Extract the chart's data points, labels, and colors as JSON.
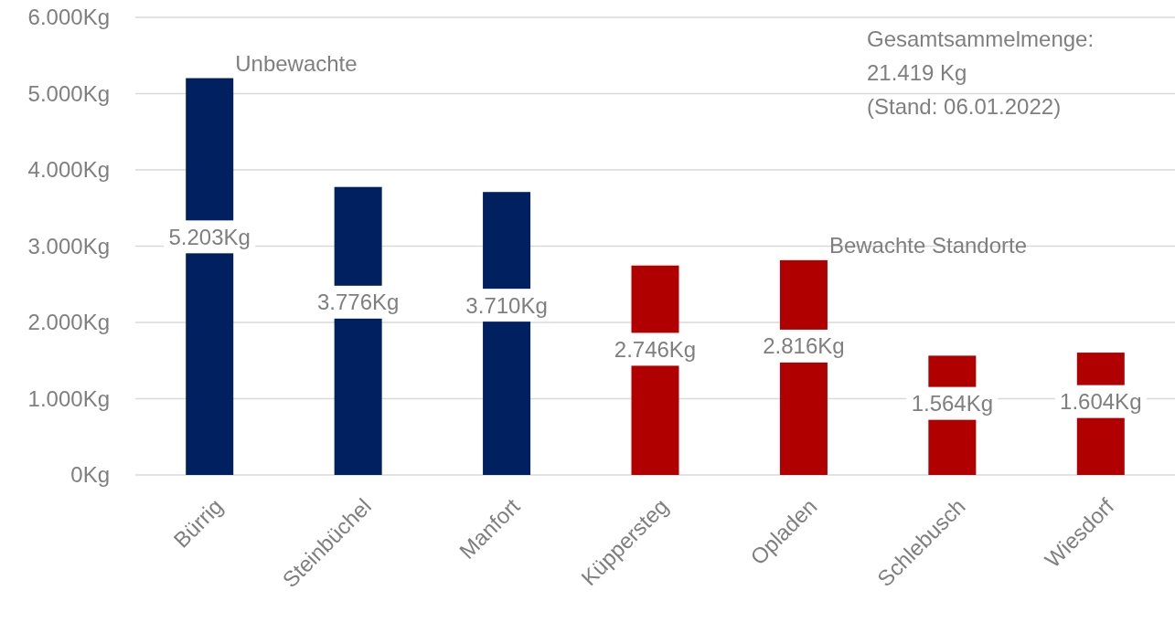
{
  "chart_data": {
    "type": "bar",
    "categories": [
      "Bürrig",
      "Steinbüchel",
      "Manfort",
      "Küppersteg",
      "Opladen",
      "Schlebusch",
      "Wiesdorf"
    ],
    "values": [
      5203,
      3776,
      3710,
      2746,
      2816,
      1564,
      1604
    ],
    "colors": [
      "#002060",
      "#002060",
      "#002060",
      "#b00000",
      "#b00000",
      "#b00000",
      "#b00000"
    ],
    "value_labels": [
      "5.203Kg",
      "3.776Kg",
      "3.710Kg",
      "2.746Kg",
      "2.816Kg",
      "1.564Kg",
      "1.604Kg"
    ],
    "ylim": [
      0,
      6000
    ],
    "yticks": [
      {
        "value": 0,
        "label": "0Kg"
      },
      {
        "value": 1000,
        "label": "1.000Kg"
      },
      {
        "value": 2000,
        "label": "2.000Kg"
      },
      {
        "value": 3000,
        "label": "3.000Kg"
      },
      {
        "value": 4000,
        "label": "4.000Kg"
      },
      {
        "value": 5000,
        "label": "5.000Kg"
      },
      {
        "value": 6000,
        "label": "6.000Kg"
      }
    ],
    "grid": "y",
    "annotations": [
      {
        "text": "Unbewachte",
        "x": "Bürrig",
        "y": 5203
      },
      {
        "text": "Bewachte Standorte",
        "x": "Opladen",
        "y": 2816
      },
      "Gesamtsammelmenge:\n21.419 Kg\n(Stand: 06.01.2022)"
    ]
  }
}
